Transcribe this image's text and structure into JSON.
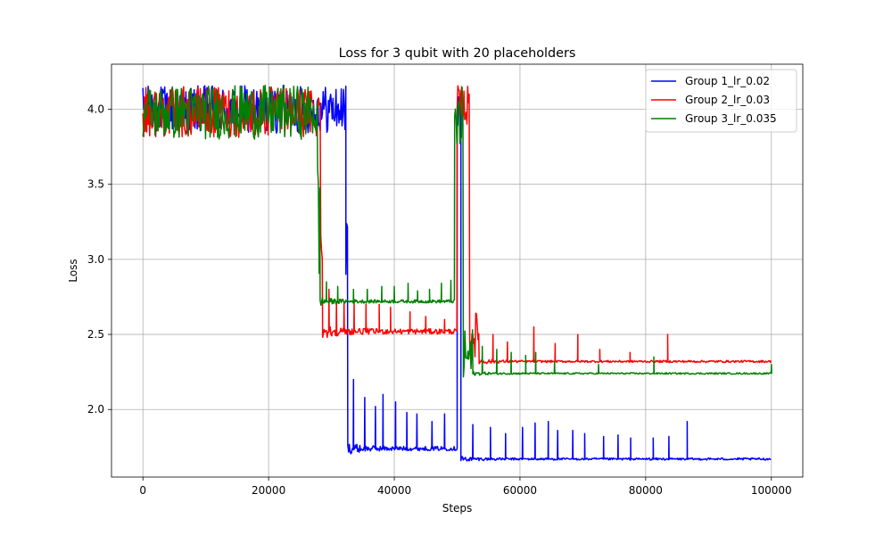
{
  "chart_data": {
    "type": "line",
    "title": "Loss for 3 qubit with 20 placeholders",
    "xlabel": "Steps",
    "ylabel": "Loss",
    "xlim": [
      -5000,
      105000
    ],
    "ylim": [
      1.55,
      4.3
    ],
    "xticks": [
      0,
      20000,
      40000,
      60000,
      80000,
      100000
    ],
    "xtick_labels": [
      "0",
      "20000",
      "40000",
      "60000",
      "80000",
      "100000"
    ],
    "yticks": [
      2.0,
      2.5,
      3.0,
      3.5,
      4.0
    ],
    "ytick_labels": [
      "2.0",
      "2.5",
      "3.0",
      "3.5",
      "4.0"
    ],
    "grid": true,
    "legend_position": "top-right",
    "series": [
      {
        "name": "Group 1_lr_0.02",
        "color": "#0000ff",
        "phases": [
          {
            "x": [
              0,
              32300
            ],
            "level": 4.0,
            "noise": 0.16
          },
          {
            "x": [
              32300,
              32600
            ],
            "level": 3.0,
            "noise": 0.5
          },
          {
            "x": [
              32600,
              50000
            ],
            "level": 1.74,
            "noise": 0.04
          },
          {
            "x": [
              50000,
              50600
            ],
            "level": 4.0,
            "noise": 0.16
          },
          {
            "x": [
              50600,
              100000
            ],
            "level": 1.67,
            "noise": 0.02
          }
        ],
        "spikes": [
          {
            "x": 33500,
            "y": 2.2
          },
          {
            "x": 35300,
            "y": 2.08
          },
          {
            "x": 37000,
            "y": 2.02
          },
          {
            "x": 38200,
            "y": 2.1
          },
          {
            "x": 40200,
            "y": 2.05
          },
          {
            "x": 42000,
            "y": 1.98
          },
          {
            "x": 43600,
            "y": 1.97
          },
          {
            "x": 46000,
            "y": 1.92
          },
          {
            "x": 48000,
            "y": 1.97
          },
          {
            "x": 52500,
            "y": 1.9
          },
          {
            "x": 55300,
            "y": 1.88
          },
          {
            "x": 57700,
            "y": 1.84
          },
          {
            "x": 60400,
            "y": 1.88
          },
          {
            "x": 62400,
            "y": 1.91
          },
          {
            "x": 64500,
            "y": 1.92
          },
          {
            "x": 66000,
            "y": 1.86
          },
          {
            "x": 68400,
            "y": 1.86
          },
          {
            "x": 70300,
            "y": 1.84
          },
          {
            "x": 73300,
            "y": 1.82
          },
          {
            "x": 75600,
            "y": 1.83
          },
          {
            "x": 77600,
            "y": 1.81
          },
          {
            "x": 81200,
            "y": 1.81
          },
          {
            "x": 83700,
            "y": 1.82
          },
          {
            "x": 86600,
            "y": 1.92
          }
        ]
      },
      {
        "name": "Group 2_lr_0.03",
        "color": "#ff0000",
        "phases": [
          {
            "x": [
              0,
              28300
            ],
            "level": 3.98,
            "noise": 0.17
          },
          {
            "x": [
              28300,
              28600
            ],
            "level": 3.3,
            "noise": 0.4
          },
          {
            "x": [
              28600,
              50000
            ],
            "level": 2.52,
            "noise": 0.05
          },
          {
            "x": [
              50000,
              52000
            ],
            "level": 4.02,
            "noise": 0.14
          },
          {
            "x": [
              52000,
              53500
            ],
            "level": 2.5,
            "noise": 0.15
          },
          {
            "x": [
              53500,
              100000
            ],
            "level": 2.32,
            "noise": 0.02
          }
        ],
        "spikes": [
          {
            "x": 29600,
            "y": 2.8
          },
          {
            "x": 30800,
            "y": 2.72
          },
          {
            "x": 32000,
            "y": 2.72
          },
          {
            "x": 33600,
            "y": 2.71
          },
          {
            "x": 35500,
            "y": 2.7
          },
          {
            "x": 37600,
            "y": 2.7
          },
          {
            "x": 39400,
            "y": 2.68
          },
          {
            "x": 42500,
            "y": 2.65
          },
          {
            "x": 45000,
            "y": 2.62
          },
          {
            "x": 48000,
            "y": 2.6
          },
          {
            "x": 55700,
            "y": 2.5
          },
          {
            "x": 58000,
            "y": 2.45
          },
          {
            "x": 62200,
            "y": 2.55
          },
          {
            "x": 65600,
            "y": 2.44
          },
          {
            "x": 69200,
            "y": 2.5
          },
          {
            "x": 72700,
            "y": 2.4
          },
          {
            "x": 77500,
            "y": 2.38
          },
          {
            "x": 83500,
            "y": 2.5
          }
        ]
      },
      {
        "name": "Group 3_lr_0.035",
        "color": "#008000",
        "phases": [
          {
            "x": [
              0,
              27800
            ],
            "level": 3.98,
            "noise": 0.18
          },
          {
            "x": [
              27800,
              28200
            ],
            "level": 3.2,
            "noise": 0.5
          },
          {
            "x": [
              28200,
              49600
            ],
            "level": 2.72,
            "noise": 0.03
          },
          {
            "x": [
              49600,
              51000
            ],
            "level": 3.9,
            "noise": 0.25
          },
          {
            "x": [
              51000,
              52500
            ],
            "level": 2.35,
            "noise": 0.2
          },
          {
            "x": [
              52500,
              100000
            ],
            "level": 2.24,
            "noise": 0.015
          }
        ],
        "spikes": [
          {
            "x": 29200,
            "y": 2.85
          },
          {
            "x": 31000,
            "y": 2.82
          },
          {
            "x": 33500,
            "y": 2.8
          },
          {
            "x": 35700,
            "y": 2.8
          },
          {
            "x": 38000,
            "y": 2.82
          },
          {
            "x": 40000,
            "y": 2.82
          },
          {
            "x": 42200,
            "y": 2.84
          },
          {
            "x": 43700,
            "y": 2.79
          },
          {
            "x": 45600,
            "y": 2.8
          },
          {
            "x": 47500,
            "y": 2.84
          },
          {
            "x": 49000,
            "y": 2.86
          },
          {
            "x": 54000,
            "y": 2.42
          },
          {
            "x": 56300,
            "y": 2.4
          },
          {
            "x": 58600,
            "y": 2.38
          },
          {
            "x": 60900,
            "y": 2.36
          },
          {
            "x": 62500,
            "y": 2.38
          },
          {
            "x": 65500,
            "y": 2.32
          },
          {
            "x": 72500,
            "y": 2.3
          },
          {
            "x": 81300,
            "y": 2.35
          },
          {
            "x": 100000,
            "y": 2.3
          }
        ]
      }
    ]
  }
}
